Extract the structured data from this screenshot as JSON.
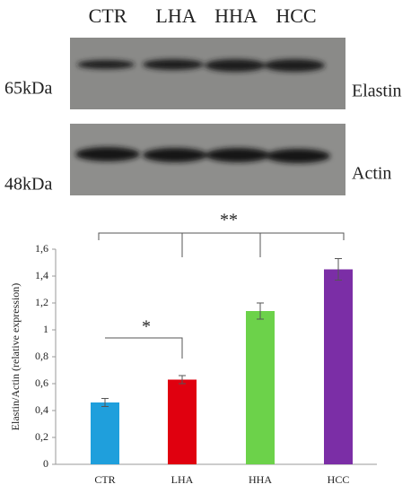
{
  "blot": {
    "lanes": [
      "CTR",
      "LHA",
      "HHA",
      "HCC"
    ],
    "rows": [
      {
        "marker": "65kDa",
        "protein": "Elastin"
      },
      {
        "marker": "48kDa",
        "protein": "Actin"
      }
    ]
  },
  "chart_data": {
    "type": "bar",
    "y_label": "Elastin/Actin (relative expression)",
    "categories": [
      "CTR",
      "LHA",
      "HHA",
      "HCC"
    ],
    "values": [
      0.46,
      0.63,
      1.14,
      1.45
    ],
    "errors": [
      0.03,
      0.03,
      0.06,
      0.08
    ],
    "colors": [
      "#1f9fdc",
      "#e0000f",
      "#6cd24a",
      "#7b2ea6"
    ],
    "ylim": [
      0,
      1.6
    ],
    "yticks": [
      0,
      {
        "value": 0.2,
        "label": "0,2"
      },
      {
        "value": 0.4,
        "label": "0,4"
      },
      {
        "value": 0.6,
        "label": "0,6"
      },
      {
        "value": 0.8,
        "label": "0,8"
      },
      1,
      {
        "value": 1.2,
        "label": "1,2"
      },
      {
        "value": 1.4,
        "label": "1,4"
      },
      {
        "value": 1.6,
        "label": "1,6"
      }
    ],
    "annotations": [
      {
        "text": "*"
      },
      {
        "text": "**"
      }
    ]
  }
}
